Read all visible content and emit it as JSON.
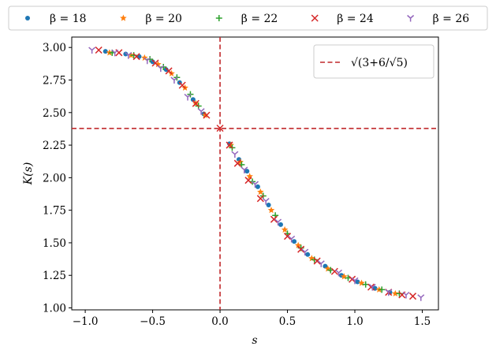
{
  "chart_data": {
    "type": "scatter",
    "xlabel": "s",
    "ylabel": "K(s)",
    "xlim": [
      -1.1,
      1.62
    ],
    "ylim": [
      0.985,
      3.08
    ],
    "xticks": [
      -1.0,
      -0.5,
      0.0,
      0.5,
      1.0,
      1.5
    ],
    "xtick_labels": [
      "−1.0",
      "−0.5",
      "0.0",
      "0.5",
      "1.0",
      "1.5"
    ],
    "yticks": [
      1.0,
      1.25,
      1.5,
      1.75,
      2.0,
      2.25,
      2.5,
      2.75,
      3.0
    ],
    "ytick_labels": [
      "1.00",
      "1.25",
      "1.50",
      "1.75",
      "2.00",
      "2.25",
      "2.50",
      "2.75",
      "3.00"
    ],
    "grid": false,
    "legend": {
      "placement": "top-outside"
    },
    "series": [
      {
        "name": "β = 18",
        "marker": "dot",
        "color": "#1f77b4",
        "x": [
          -0.85,
          -0.7,
          -0.6,
          -0.5,
          -0.4,
          -0.3,
          -0.2,
          -0.12,
          0.07,
          0.14,
          0.2,
          0.28,
          0.36,
          0.45,
          0.55,
          0.65,
          0.78,
          0.9,
          1.02,
          1.15,
          1.26
        ],
        "y": [
          2.97,
          2.95,
          2.93,
          2.89,
          2.83,
          2.73,
          2.6,
          2.49,
          2.26,
          2.14,
          2.05,
          1.93,
          1.79,
          1.64,
          1.51,
          1.41,
          1.32,
          1.25,
          1.2,
          1.15,
          1.12
        ]
      },
      {
        "name": "β = 20",
        "marker": "star",
        "color": "#ff7f0e",
        "x": [
          -0.82,
          -0.66,
          -0.56,
          -0.46,
          -0.36,
          -0.26,
          -0.18,
          -0.11,
          0.08,
          0.15,
          0.22,
          0.3,
          0.38,
          0.48,
          0.58,
          0.68,
          0.8,
          0.92,
          1.05,
          1.18,
          1.3
        ],
        "y": [
          2.96,
          2.94,
          2.92,
          2.87,
          2.8,
          2.69,
          2.57,
          2.48,
          2.25,
          2.12,
          2.01,
          1.89,
          1.75,
          1.6,
          1.48,
          1.38,
          1.3,
          1.24,
          1.19,
          1.14,
          1.11
        ]
      },
      {
        "name": "β = 22",
        "marker": "plus",
        "color": "#2ca02c",
        "x": [
          -0.8,
          -0.64,
          -0.52,
          -0.42,
          -0.32,
          -0.22,
          -0.16,
          0.09,
          0.16,
          0.24,
          0.32,
          0.41,
          0.5,
          0.6,
          0.7,
          0.82,
          0.95,
          1.08,
          1.2,
          1.33
        ],
        "y": [
          2.96,
          2.94,
          2.91,
          2.85,
          2.77,
          2.64,
          2.55,
          2.23,
          2.1,
          1.97,
          1.86,
          1.71,
          1.57,
          1.46,
          1.37,
          1.29,
          1.23,
          1.18,
          1.14,
          1.11
        ]
      },
      {
        "name": "β = 24",
        "marker": "x",
        "color": "#d62728",
        "x": [
          -0.9,
          -0.75,
          -0.62,
          -0.48,
          -0.38,
          -0.28,
          -0.18,
          -0.1,
          0.0,
          0.07,
          0.13,
          0.21,
          0.3,
          0.4,
          0.5,
          0.6,
          0.72,
          0.85,
          0.98,
          1.12,
          1.25,
          1.35,
          1.43
        ],
        "y": [
          2.98,
          2.96,
          2.93,
          2.88,
          2.82,
          2.71,
          2.57,
          2.48,
          2.38,
          2.25,
          2.11,
          1.98,
          1.84,
          1.68,
          1.55,
          1.45,
          1.36,
          1.28,
          1.22,
          1.16,
          1.12,
          1.1,
          1.09
        ]
      },
      {
        "name": "β = 26",
        "marker": "tri",
        "color": "#9467bd",
        "x": [
          -0.95,
          -0.78,
          -0.68,
          -0.54,
          -0.44,
          -0.34,
          -0.24,
          -0.14,
          0.11,
          0.18,
          0.26,
          0.34,
          0.43,
          0.53,
          0.63,
          0.75,
          0.88,
          1.0,
          1.13,
          1.25,
          1.38,
          1.49
        ],
        "y": [
          2.98,
          2.96,
          2.94,
          2.9,
          2.84,
          2.75,
          2.62,
          2.51,
          2.18,
          2.06,
          1.95,
          1.82,
          1.66,
          1.53,
          1.43,
          1.34,
          1.27,
          1.21,
          1.16,
          1.12,
          1.1,
          1.08
        ]
      }
    ],
    "reference_lines": {
      "horizontal": {
        "y": 2.3778,
        "label": "√(3+6/√5)",
        "color": "#c0292b",
        "style": "dashed"
      },
      "vertical": {
        "x": 0.0,
        "color": "#c0292b",
        "style": "dashed"
      }
    }
  }
}
